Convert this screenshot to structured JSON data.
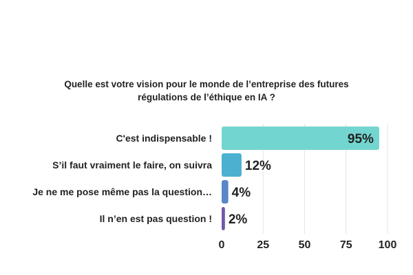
{
  "chart_data": {
    "type": "bar",
    "orientation": "horizontal",
    "title_line1": "Quelle est votre vision pour le monde de l’entreprise des futures",
    "title_line2": "régulations de l’éthique en IA ?",
    "categories": [
      "C'est indispensable !",
      "S’il faut vraiment le faire, on suivra",
      "Je ne me pose même pas la question…",
      "Il n’en est pas question !"
    ],
    "values": [
      95,
      12,
      4,
      2
    ],
    "labels": [
      "95%",
      "12%",
      "4%",
      "2%"
    ],
    "colors": [
      "#73d5cf",
      "#4cb0d0",
      "#5b87c8",
      "#6f5aa8"
    ],
    "xlim": [
      0,
      100
    ],
    "xticks": [
      "0",
      "25",
      "50",
      "75",
      "100"
    ],
    "grid": true,
    "xlabel": "",
    "ylabel": ""
  }
}
